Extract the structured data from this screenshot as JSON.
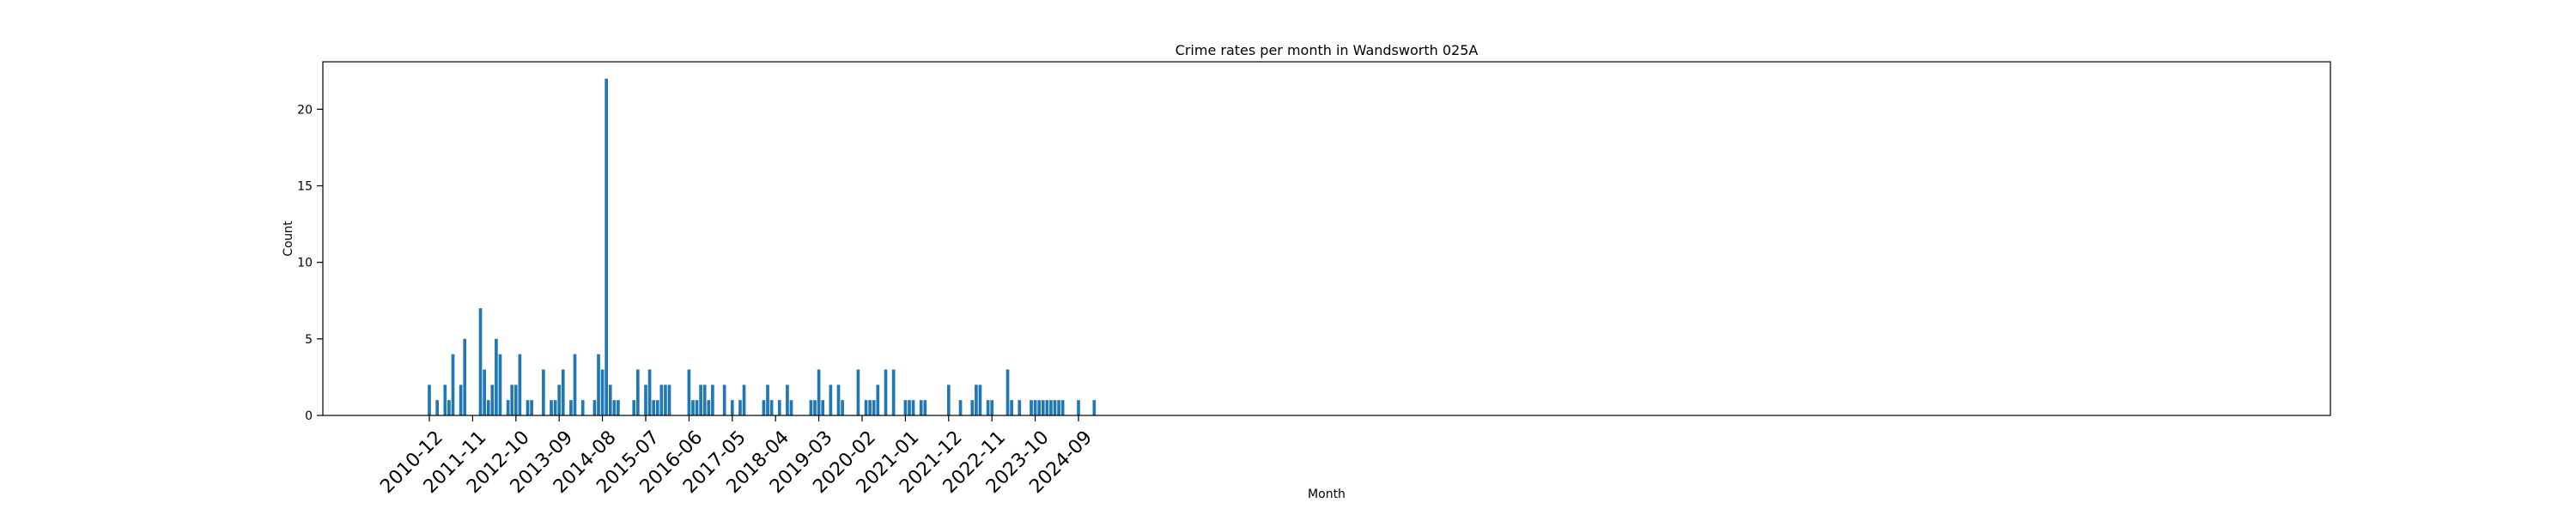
{
  "chart_data": {
    "type": "bar",
    "title": "Crime rates per month in Wandsworth 025A",
    "xlabel": "Month",
    "ylabel": "Count",
    "ylim": [
      0,
      23.1
    ],
    "yticks": [
      0,
      5,
      10,
      15,
      20
    ],
    "xticks": [
      "2010-12",
      "2011-11",
      "2012-10",
      "2013-09",
      "2014-08",
      "2015-07",
      "2016-06",
      "2017-05",
      "2018-04",
      "2019-03",
      "2020-02",
      "2021-01",
      "2021-12",
      "2022-11",
      "2023-10",
      "2024-09"
    ],
    "months": [
      "2010-12",
      "2011-02",
      "2011-04",
      "2011-05",
      "2011-06",
      "2011-08",
      "2011-09",
      "2012-01",
      "2012-02",
      "2012-03",
      "2012-04",
      "2012-05",
      "2012-06",
      "2012-08",
      "2012-09",
      "2012-10",
      "2012-11",
      "2013-01",
      "2013-02",
      "2013-05",
      "2013-07",
      "2013-08",
      "2013-09",
      "2013-10",
      "2013-12",
      "2014-01",
      "2014-03",
      "2014-06",
      "2014-07",
      "2014-08",
      "2014-09",
      "2014-10",
      "2014-11",
      "2014-12",
      "2015-04",
      "2015-05",
      "2015-07",
      "2015-08",
      "2015-09",
      "2015-10",
      "2015-11",
      "2015-12",
      "2016-01",
      "2016-06",
      "2016-07",
      "2016-08",
      "2016-09",
      "2016-10",
      "2016-11",
      "2016-12",
      "2017-03",
      "2017-05",
      "2017-07",
      "2017-08",
      "2018-01",
      "2018-02",
      "2018-03",
      "2018-05",
      "2018-07",
      "2018-08",
      "2019-01",
      "2019-02",
      "2019-03",
      "2019-04",
      "2019-06",
      "2019-08",
      "2019-09",
      "2020-01",
      "2020-03",
      "2020-04",
      "2020-05",
      "2020-06",
      "2020-08",
      "2020-10",
      "2021-01",
      "2021-02",
      "2021-03",
      "2021-05",
      "2021-06",
      "2021-12",
      "2022-03",
      "2022-06",
      "2022-07",
      "2022-08",
      "2022-10",
      "2022-11",
      "2023-03",
      "2023-04",
      "2023-06",
      "2023-09",
      "2023-10",
      "2023-11",
      "2023-12",
      "2024-01",
      "2024-02",
      "2024-03",
      "2024-04",
      "2024-05",
      "2024-09",
      "2025-01"
    ],
    "values": [
      2,
      1,
      2,
      1,
      4,
      2,
      5,
      7,
      3,
      1,
      2,
      5,
      4,
      1,
      2,
      2,
      4,
      1,
      1,
      3,
      1,
      1,
      2,
      3,
      1,
      4,
      1,
      1,
      4,
      3,
      22,
      2,
      1,
      1,
      1,
      3,
      2,
      3,
      1,
      1,
      2,
      2,
      2,
      3,
      1,
      1,
      2,
      2,
      1,
      2,
      2,
      1,
      1,
      2,
      1,
      2,
      1,
      1,
      2,
      1,
      1,
      1,
      3,
      1,
      2,
      2,
      1,
      3,
      1,
      1,
      1,
      2,
      3,
      3,
      1,
      1,
      1,
      1,
      1,
      2,
      1,
      1,
      2,
      2,
      1,
      1,
      3,
      1,
      1,
      1,
      1,
      1,
      1,
      1,
      1,
      1,
      1,
      1,
      1,
      1
    ],
    "bar_color": "#1f77b4"
  }
}
